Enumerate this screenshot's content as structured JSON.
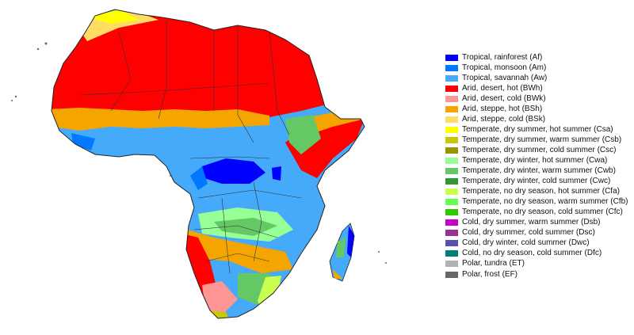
{
  "map": {
    "region": "Africa",
    "colors": {
      "Af": "#0000ff",
      "Am": "#0078ff",
      "Aw": "#46aafa",
      "BWh": "#ff0000",
      "BWk": "#ff9696",
      "BSh": "#f5a500",
      "BSk": "#ffdc64",
      "Csa": "#ffff00",
      "Csb": "#c8c800",
      "Csc": "#969600",
      "Cwa": "#96ff96",
      "Cwb": "#64c864",
      "Cwc": "#329632",
      "Cfa": "#c8ff50",
      "Cfb": "#64ff50",
      "Cfc": "#32c800",
      "Dsb": "#c800c8",
      "Dsc": "#963296",
      "Dwc": "#5a50b4",
      "Dfc": "#007d7d",
      "ET": "#b2b2b2",
      "EF": "#666666"
    }
  },
  "legend": {
    "items": [
      {
        "label": "Tropical, rainforest (Af)",
        "color": "#0000ff"
      },
      {
        "label": "Tropical, monsoon (Am)",
        "color": "#0078ff"
      },
      {
        "label": "Tropical, savannah (Aw)",
        "color": "#46aafa"
      },
      {
        "label": "Arid, desert, hot (BWh)",
        "color": "#ff0000"
      },
      {
        "label": "Arid, desert, cold (BWk)",
        "color": "#ff9696"
      },
      {
        "label": "Arid, steppe, hot (BSh)",
        "color": "#f5a500"
      },
      {
        "label": "Arid, steppe, cold (BSk)",
        "color": "#ffdc64"
      },
      {
        "label": "Temperate, dry summer, hot summer (Csa)",
        "color": "#ffff00"
      },
      {
        "label": "Temperate, dry summer, warm summer (Csb)",
        "color": "#c8c800"
      },
      {
        "label": "Temperate, dry summer, cold summer (Csc)",
        "color": "#969600"
      },
      {
        "label": "Temperate, dry winter, hot summer (Cwa)",
        "color": "#96ff96"
      },
      {
        "label": "Temperate, dry winter, warm summer (Cwb)",
        "color": "#64c864"
      },
      {
        "label": "Temperate, dry winter, cold summer (Cwc)",
        "color": "#329632"
      },
      {
        "label": "Temperate, no dry season, hot summer (Cfa)",
        "color": "#c8ff50"
      },
      {
        "label": "Temperate, no dry season, warm summer (Cfb)",
        "color": "#64ff50"
      },
      {
        "label": "Temperate, no dry season, cold summer (Cfc)",
        "color": "#32c800"
      },
      {
        "label": "Cold, dry summer, warm summer (Dsb)",
        "color": "#c800c8"
      },
      {
        "label": "Cold, dry summer, cold summer (Dsc)",
        "color": "#963296"
      },
      {
        "label": "Cold, dry winter, cold summer (Dwc)",
        "color": "#5a50b4"
      },
      {
        "label": "Cold, no dry season, cold summer (Dfc)",
        "color": "#007d7d"
      },
      {
        "label": "Polar, tundra (ET)",
        "color": "#b2b2b2"
      },
      {
        "label": "Polar, frost (EF)",
        "color": "#666666"
      }
    ]
  }
}
